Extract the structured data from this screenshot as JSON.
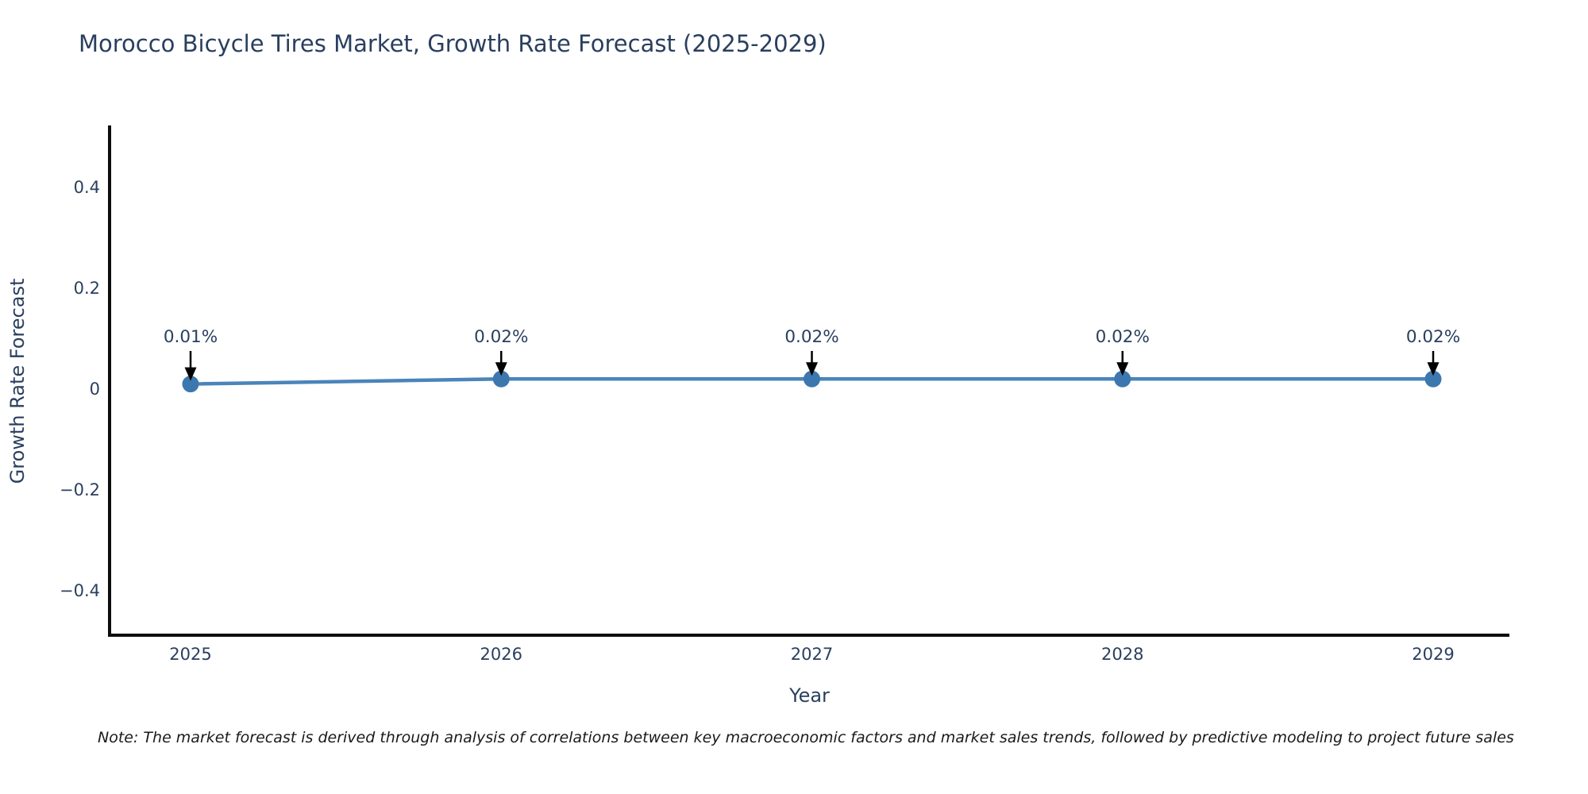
{
  "figure": {
    "title": "Morocco Bicycle Tires Market, Growth Rate Forecast (2025-2029)",
    "note": "Note: The market forecast is derived through analysis of correlations between key macroeconomic factors and market sales trends, followed by predictive modeling to project future sales"
  },
  "chart_data": {
    "type": "line",
    "title": "Morocco Bicycle Tires Market, Growth Rate Forecast (2025-2029)",
    "x": [
      2025,
      2026,
      2027,
      2028,
      2029
    ],
    "x_tick_labels": [
      "2025",
      "2026",
      "2027",
      "2028",
      "2029"
    ],
    "series": [
      {
        "name": "Growth Rate Forecast",
        "values": [
          0.01,
          0.02,
          0.02,
          0.02,
          0.02
        ]
      }
    ],
    "point_labels": [
      "0.01%",
      "0.02%",
      "0.02%",
      "0.02%",
      "0.02%"
    ],
    "annotation_style": "black down-arrow from label to each data point",
    "xlabel": "Year",
    "ylabel": "Growth Rate Forecast",
    "y_ticks": [
      0.4,
      0.2,
      0,
      -0.2,
      -0.4
    ],
    "y_tick_labels": [
      "0.4",
      "0.2",
      "0",
      "−0.2",
      "−0.4"
    ],
    "ylim": [
      -0.49,
      0.52
    ],
    "grid": false,
    "legend": false,
    "colors": {
      "line": "#4a84ba",
      "marker": "#3d77af",
      "text": "#2a3f5f",
      "axis": "#0d0d0d",
      "arrow": "#000000",
      "background": "#ffffff"
    }
  }
}
